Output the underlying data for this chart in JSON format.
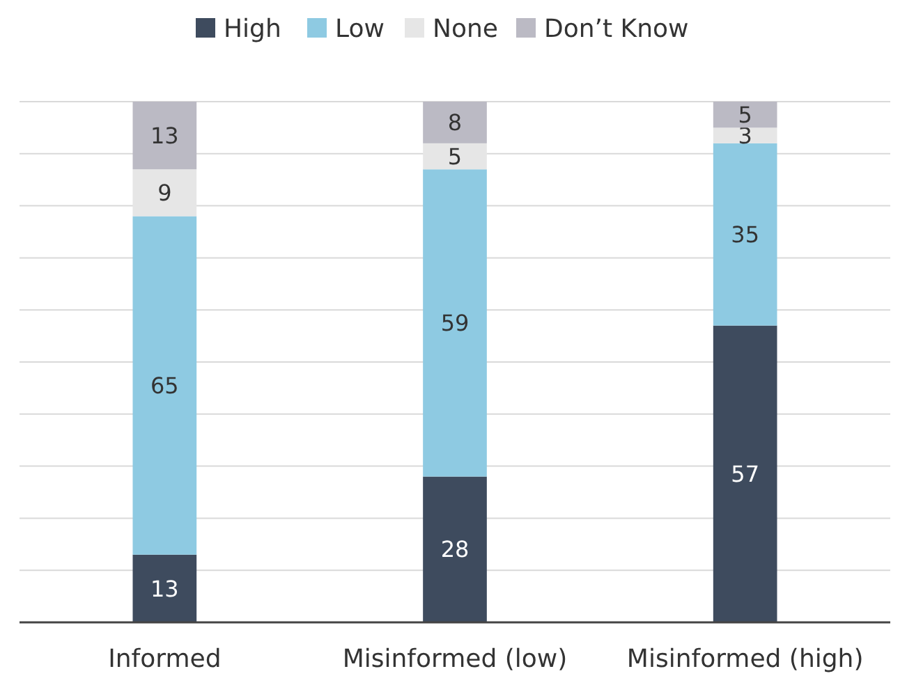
{
  "chart_data": {
    "type": "bar",
    "stacked": true,
    "categories": [
      "Informed",
      "Misinformed (low)",
      "Misinformed (high)"
    ],
    "series": [
      {
        "name": "High",
        "color": "#3e4b5e",
        "values": [
          13,
          28,
          57
        ]
      },
      {
        "name": "Low",
        "color": "#8ecae2",
        "values": [
          65,
          59,
          35
        ]
      },
      {
        "name": "None",
        "color": "#e6e6e6",
        "values": [
          9,
          5,
          3
        ]
      },
      {
        "name": "Don’t Know",
        "color": "#bbbac4",
        "values": [
          13,
          8,
          5
        ]
      }
    ],
    "ylim": [
      0,
      100
    ],
    "yticks": [
      {
        "value": 0,
        "label": null
      },
      {
        "value": 10,
        "label": null
      },
      {
        "value": 20,
        "label": null
      },
      {
        "value": 30,
        "label": null
      },
      {
        "value": 40,
        "label": null
      },
      {
        "value": 50,
        "label": null
      },
      {
        "value": 60,
        "label": null
      },
      {
        "value": 70,
        "label": null
      },
      {
        "value": 80,
        "label": null
      },
      {
        "value": 90,
        "label": null
      },
      {
        "value": 100,
        "label": null
      }
    ],
    "grid": "y",
    "legend": "top",
    "data_labels": true,
    "tick_labels": "x"
  }
}
